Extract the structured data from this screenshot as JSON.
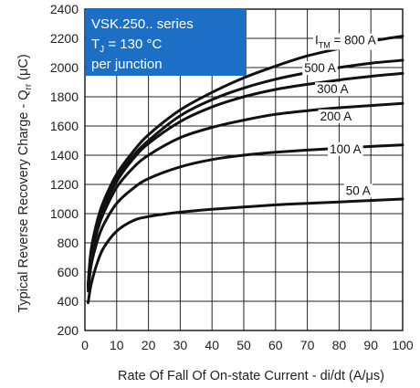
{
  "chart_data": {
    "type": "line",
    "title": "",
    "xlabel": "Rate Of Fall Of On-state Current - di/dt (A/μs)",
    "ylabel": {
      "main": "Typical Reverse Recovery Charge - Q",
      "sub": "rr",
      "unit": " (μC)"
    },
    "xlim": [
      0,
      100
    ],
    "ylim": [
      200,
      2400
    ],
    "xticks": [
      "0",
      "10",
      "20",
      "30",
      "40",
      "50",
      "60",
      "70",
      "80",
      "90",
      "100"
    ],
    "yticks": [
      "200",
      "400",
      "600",
      "800",
      "1000",
      "1200",
      "1400",
      "1600",
      "1800",
      "2000",
      "2200",
      "2400"
    ],
    "grid": true,
    "annotation_box": {
      "fill": "#1c6fc4",
      "line1": "VSK.250.. series",
      "line2_main": "T",
      "line2_sub": "J",
      "line2_rest": " = 130 °C",
      "line3": "per junction"
    },
    "series_prefix": {
      "main": "I",
      "sub": "TM",
      "rest": " = "
    },
    "series": [
      {
        "name": "800 A",
        "x": [
          1,
          2,
          4,
          6,
          10,
          15,
          20,
          30,
          40,
          50,
          60,
          70,
          80,
          90,
          100
        ],
        "y": [
          520,
          760,
          960,
          1090,
          1270,
          1420,
          1540,
          1710,
          1830,
          1930,
          2010,
          2080,
          2130,
          2180,
          2215
        ]
      },
      {
        "name": "500 A",
        "x": [
          1,
          2,
          4,
          6,
          10,
          15,
          20,
          30,
          40,
          50,
          60,
          70,
          80,
          90,
          100
        ],
        "y": [
          510,
          740,
          940,
          1065,
          1240,
          1390,
          1500,
          1670,
          1780,
          1860,
          1920,
          1965,
          2000,
          2030,
          2050
        ]
      },
      {
        "name": "300 A",
        "x": [
          1,
          2,
          4,
          6,
          10,
          15,
          20,
          30,
          40,
          50,
          60,
          70,
          80,
          90,
          100
        ],
        "y": [
          500,
          720,
          920,
          1045,
          1220,
          1370,
          1480,
          1630,
          1730,
          1800,
          1850,
          1885,
          1915,
          1940,
          1960
        ]
      },
      {
        "name": "200 A",
        "x": [
          1,
          2,
          4,
          6,
          10,
          15,
          20,
          30,
          40,
          50,
          60,
          70,
          80,
          90,
          100
        ],
        "y": [
          490,
          700,
          890,
          1010,
          1180,
          1310,
          1400,
          1520,
          1590,
          1640,
          1680,
          1705,
          1725,
          1740,
          1755
        ]
      },
      {
        "name": "100 A",
        "x": [
          1,
          2,
          4,
          6,
          10,
          15,
          20,
          30,
          40,
          50,
          60,
          70,
          80,
          90,
          100
        ],
        "y": [
          470,
          650,
          820,
          930,
          1070,
          1170,
          1240,
          1320,
          1370,
          1400,
          1420,
          1435,
          1448,
          1460,
          1470
        ]
      },
      {
        "name": "50 A",
        "x": [
          1,
          2,
          4,
          6,
          10,
          15,
          20,
          30,
          40,
          50,
          60,
          70,
          80,
          90,
          100
        ],
        "y": [
          390,
          520,
          670,
          770,
          880,
          950,
          980,
          1010,
          1030,
          1045,
          1060,
          1070,
          1080,
          1090,
          1100
        ]
      }
    ],
    "colors": {
      "curve": "#111111",
      "grid": "#222222",
      "frame": "#111111"
    }
  }
}
